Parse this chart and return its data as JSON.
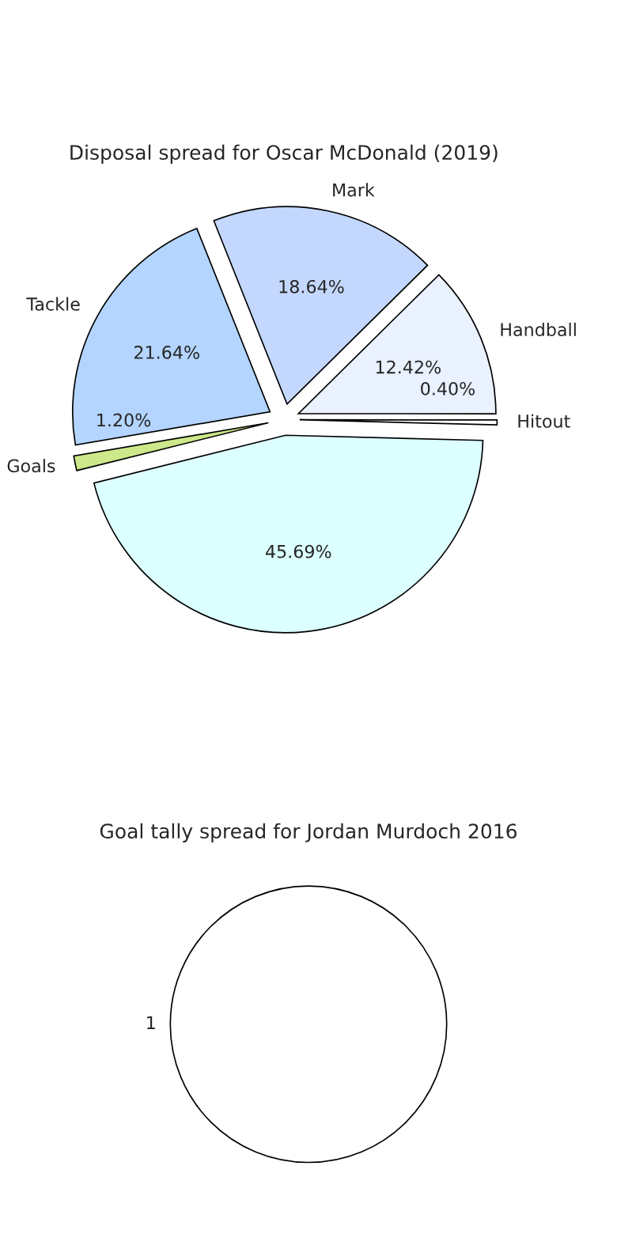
{
  "chart_data": [
    {
      "type": "pie",
      "title": "Disposal spread for Oscar McDonald (2019)",
      "categories": [
        "Hitout",
        "Handball",
        "Mark",
        "Tackle",
        "Goals",
        null
      ],
      "values": [
        0.4,
        12.42,
        18.64,
        21.64,
        1.2,
        45.69
      ],
      "value_labels": [
        "0.40%",
        "12.42%",
        "18.64%",
        "21.64%",
        "1.20%",
        "45.69%"
      ],
      "colors": [
        "#ffffff",
        "#eaf1ff",
        "#c4d8ff",
        "#b3d5ff",
        "#cce88a",
        "#dcffff"
      ],
      "legend": false
    },
    {
      "type": "pie",
      "title": "Goal tally spread for Jordan Murdoch 2016",
      "categories": [
        "1"
      ],
      "values": [
        100
      ],
      "colors": [
        "#ffffff"
      ],
      "legend": false
    }
  ]
}
